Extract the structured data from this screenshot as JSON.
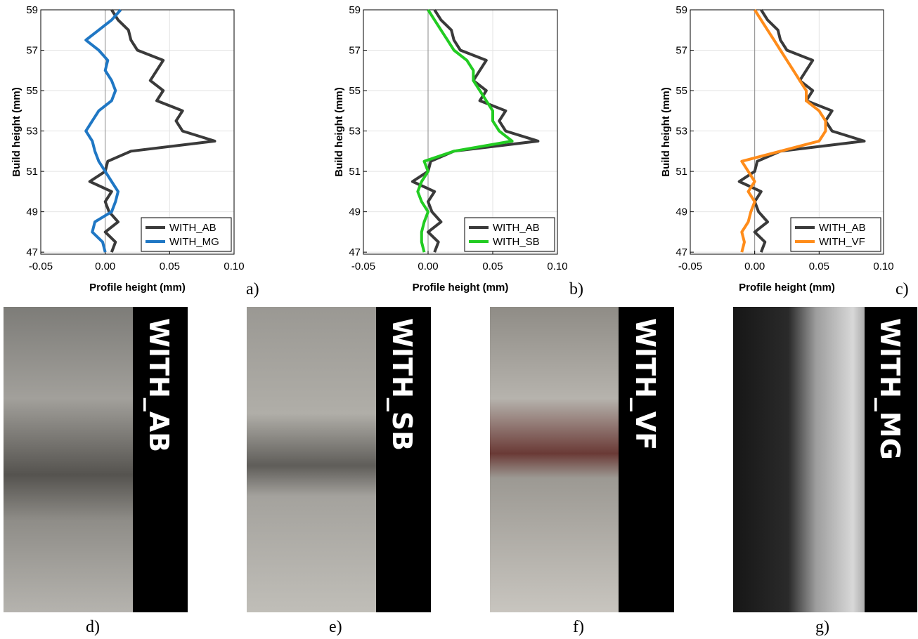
{
  "chart_data": [
    {
      "type": "line",
      "caption": "a)",
      "xlabel": "Profile height (mm)",
      "ylabel": "Build height (mm)",
      "y": [
        47,
        47.5,
        48,
        48.5,
        49,
        49.5,
        50,
        50.5,
        51,
        51.5,
        52,
        52.5,
        53,
        53.5,
        54,
        54.5,
        55,
        55.5,
        56,
        56.5,
        57,
        57.5,
        58,
        58.5,
        59
      ],
      "xlim": [
        -0.05,
        0.1
      ],
      "xticks": [
        -0.05,
        {
          "value": 0,
          "label": "0.00"
        },
        0.05,
        {
          "value": 0.1,
          "label": "0.10"
        }
      ],
      "ylim": [
        46.9,
        59
      ],
      "yticks": [
        47,
        49,
        51,
        53,
        55,
        57,
        59
      ],
      "grid": true,
      "legend": "lower right",
      "series": [
        {
          "name": "WITH_AB",
          "color": "#3a3a3a",
          "values": [
            0.005,
            0.008,
            0.0,
            0.01,
            0.003,
            0.0,
            0.005,
            -0.012,
            0.0,
            0.002,
            0.02,
            0.085,
            0.06,
            0.055,
            0.06,
            0.04,
            0.045,
            0.035,
            0.04,
            0.045,
            0.025,
            0.02,
            0.018,
            0.01,
            0.005
          ]
        },
        {
          "name": "WITH_MG",
          "color": "#1f77c4",
          "values": [
            0.0,
            -0.002,
            -0.01,
            -0.008,
            0.005,
            0.008,
            0.01,
            0.005,
            0.0,
            -0.005,
            -0.008,
            -0.01,
            -0.015,
            -0.01,
            -0.005,
            0.005,
            0.008,
            0.005,
            0.0,
            0.002,
            -0.005,
            -0.015,
            -0.005,
            0.005,
            0.012
          ]
        }
      ]
    },
    {
      "type": "line",
      "caption": "b)",
      "xlabel": "Profile height (mm)",
      "ylabel": "Build height (mm)",
      "y": [
        47,
        47.5,
        48,
        48.5,
        49,
        49.5,
        50,
        50.5,
        51,
        51.5,
        52,
        52.5,
        53,
        53.5,
        54,
        54.5,
        55,
        55.5,
        56,
        56.5,
        57,
        57.5,
        58,
        58.5,
        59
      ],
      "xlim": [
        -0.05,
        0.1
      ],
      "xticks": [
        -0.05,
        {
          "value": 0,
          "label": "0.00"
        },
        0.05,
        {
          "value": 0.1,
          "label": "0.10"
        }
      ],
      "ylim": [
        46.9,
        59
      ],
      "yticks": [
        47,
        49,
        51,
        53,
        55,
        57,
        59
      ],
      "grid": true,
      "legend": "lower right",
      "series": [
        {
          "name": "WITH_AB",
          "color": "#3a3a3a",
          "values": [
            0.005,
            0.008,
            0.0,
            0.01,
            0.003,
            0.0,
            0.005,
            -0.012,
            0.0,
            0.002,
            0.02,
            0.085,
            0.06,
            0.055,
            0.06,
            0.04,
            0.045,
            0.035,
            0.04,
            0.045,
            0.025,
            0.02,
            0.018,
            0.01,
            0.005
          ]
        },
        {
          "name": "WITH_SB",
          "color": "#22cc22",
          "values": [
            -0.003,
            -0.005,
            -0.005,
            -0.003,
            0.0,
            -0.005,
            -0.008,
            -0.005,
            0.0,
            -0.003,
            0.02,
            0.065,
            0.055,
            0.05,
            0.05,
            0.045,
            0.04,
            0.035,
            0.035,
            0.03,
            0.02,
            0.015,
            0.01,
            0.005,
            0.0
          ]
        }
      ]
    },
    {
      "type": "line",
      "caption": "c)",
      "xlabel": "Profile height (mm)",
      "ylabel": "Build height (mm)",
      "y": [
        47,
        47.5,
        48,
        48.5,
        49,
        49.5,
        50,
        50.5,
        51,
        51.5,
        52,
        52.5,
        53,
        53.5,
        54,
        54.5,
        55,
        55.5,
        56,
        56.5,
        57,
        57.5,
        58,
        58.5,
        59
      ],
      "xlim": [
        -0.05,
        0.1
      ],
      "xticks": [
        -0.05,
        {
          "value": 0,
          "label": "0.00"
        },
        0.05,
        {
          "value": 0.1,
          "label": "0.10"
        }
      ],
      "ylim": [
        46.9,
        59
      ],
      "yticks": [
        47,
        49,
        51,
        53,
        55,
        57,
        59
      ],
      "grid": true,
      "legend": "lower right",
      "series": [
        {
          "name": "WITH_AB",
          "color": "#3a3a3a",
          "values": [
            0.005,
            0.008,
            0.0,
            0.01,
            0.003,
            0.0,
            0.005,
            -0.012,
            0.0,
            0.002,
            0.02,
            0.085,
            0.06,
            0.055,
            0.06,
            0.04,
            0.045,
            0.035,
            0.04,
            0.045,
            0.025,
            0.02,
            0.018,
            0.01,
            0.005
          ]
        },
        {
          "name": "WITH_VF",
          "color": "#ff8c1a",
          "values": [
            -0.01,
            -0.008,
            -0.01,
            -0.005,
            -0.003,
            0.0,
            -0.005,
            0.0,
            -0.005,
            -0.01,
            0.02,
            0.05,
            0.055,
            0.055,
            0.05,
            0.04,
            0.04,
            0.035,
            0.03,
            0.025,
            0.02,
            0.015,
            0.01,
            0.005,
            0.0
          ]
        }
      ]
    }
  ],
  "photos": [
    {
      "label": "WITH_AB",
      "caption": "d)"
    },
    {
      "label": "WITH_SB",
      "caption": "e)"
    },
    {
      "label": "WITH_VF",
      "caption": "f)"
    },
    {
      "label": "WITH_MG",
      "caption": "g)"
    }
  ]
}
